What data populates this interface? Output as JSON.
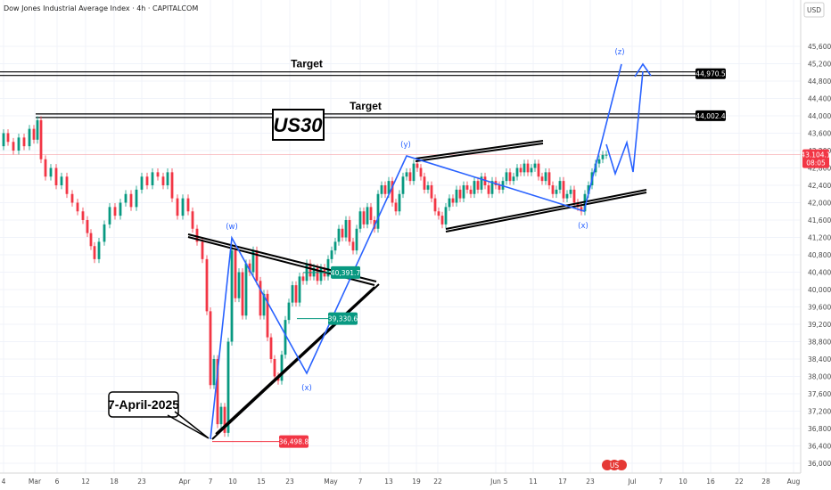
{
  "title": "Dow Jones Industrial Average Index · 4h · CAPITALCOM",
  "currency": "USD",
  "chart_data": {
    "type": "candlestick",
    "y_ticks": [
      36000,
      36400,
      36800,
      37200,
      37600,
      38000,
      38400,
      38800,
      39200,
      39600,
      40000,
      40400,
      40800,
      41200,
      41600,
      42000,
      42400,
      42800,
      43200,
      43600,
      44000,
      44400,
      44800,
      45200,
      45600
    ],
    "y_tick_labels": [
      "36,000.0",
      "36,400.0",
      "36,800.0",
      "37,200.0",
      "37,600.0",
      "38,000.0",
      "38,400.0",
      "38,800.0",
      "39,200.0",
      "39,600.0",
      "40,000.0",
      "40,400.0",
      "40,800.0",
      "41,200.0",
      "41,600.0",
      "42,000.0",
      "42,400.0",
      "42,800.0",
      "43,200.0",
      "43,600.0",
      "44,000.0",
      "44,400.0",
      "44,800.0",
      "45,200.0",
      "45,600.0"
    ],
    "x_ticks": [
      "4",
      "Mar",
      "6",
      "12",
      "18",
      "23",
      "Apr",
      "7",
      "10",
      "15",
      "23",
      "May",
      "7",
      "13",
      "19",
      "22",
      "Jun",
      "5",
      "11",
      "17",
      "23",
      "Jul",
      "7",
      "10",
      "16",
      "22",
      "28",
      "Aug"
    ],
    "price_tags": [
      {
        "label": "44,970.5",
        "value": 44970.5,
        "color": "#000000"
      },
      {
        "label": "44,002.4",
        "value": 44002.4,
        "color": "#000000"
      },
      {
        "label": "43,104.1",
        "value": 43104.1,
        "color": "#f23645"
      },
      {
        "label": "08:05",
        "value": 42960,
        "color": "#f23645"
      }
    ],
    "levels": [
      {
        "label": "40,391.7",
        "value": 40391.7,
        "color": "#089981"
      },
      {
        "label": "39,330.6",
        "value": 39330.6,
        "color": "#089981"
      },
      {
        "label": "36,498.8",
        "value": 36498.8,
        "color": "#f23645"
      }
    ],
    "targets": [
      {
        "label": "Target",
        "value": 44970.5
      },
      {
        "label": "Target",
        "value": 44002.4
      }
    ],
    "waves": [
      {
        "label": "(w)",
        "value": 41200
      },
      {
        "label": "(x)",
        "value": 37900
      },
      {
        "label": "(y)",
        "value": 43000
      },
      {
        "label": "(x)",
        "value": 41300
      },
      {
        "label": "(z)",
        "value": 45300
      }
    ],
    "price_path": [
      [
        2,
        43300
      ],
      [
        6,
        43600
      ],
      [
        12,
        43400
      ],
      [
        18,
        43200
      ],
      [
        24,
        43500
      ],
      [
        30,
        43300
      ],
      [
        36,
        43700
      ],
      [
        40,
        43450
      ],
      [
        44,
        43900
      ],
      [
        48,
        43000
      ],
      [
        54,
        42600
      ],
      [
        60,
        42800
      ],
      [
        66,
        42400
      ],
      [
        72,
        42600
      ],
      [
        78,
        42200
      ],
      [
        84,
        42000
      ],
      [
        90,
        41800
      ],
      [
        96,
        41600
      ],
      [
        100,
        41300
      ],
      [
        104,
        41000
      ],
      [
        108,
        40700
      ],
      [
        114,
        41100
      ],
      [
        120,
        41500
      ],
      [
        126,
        41900
      ],
      [
        132,
        41700
      ],
      [
        138,
        42000
      ],
      [
        144,
        42200
      ],
      [
        150,
        41900
      ],
      [
        156,
        42300
      ],
      [
        162,
        42600
      ],
      [
        168,
        42400
      ],
      [
        174,
        42700
      ],
      [
        180,
        42600
      ],
      [
        186,
        42400
      ],
      [
        190,
        42700
      ],
      [
        196,
        42100
      ],
      [
        202,
        41700
      ],
      [
        208,
        42100
      ],
      [
        214,
        41800
      ],
      [
        218,
        41400
      ],
      [
        224,
        41100
      ],
      [
        230,
        40700
      ],
      [
        234,
        39500
      ],
      [
        238,
        37800
      ],
      [
        242,
        38400
      ],
      [
        246,
        36900
      ],
      [
        250,
        37300
      ],
      [
        254,
        36700
      ],
      [
        258,
        38800
      ],
      [
        262,
        40900
      ],
      [
        266,
        39800
      ],
      [
        270,
        40400
      ],
      [
        274,
        39400
      ],
      [
        278,
        40600
      ],
      [
        282,
        40400
      ],
      [
        286,
        40900
      ],
      [
        290,
        40200
      ],
      [
        294,
        39400
      ],
      [
        298,
        39900
      ],
      [
        302,
        38900
      ],
      [
        306,
        38400
      ],
      [
        310,
        38000
      ],
      [
        314,
        37900
      ],
      [
        318,
        38500
      ],
      [
        322,
        39300
      ],
      [
        326,
        39700
      ],
      [
        330,
        40100
      ],
      [
        334,
        39700
      ],
      [
        338,
        40300
      ],
      [
        342,
        40200
      ],
      [
        346,
        40600
      ],
      [
        350,
        40300
      ],
      [
        354,
        40500
      ],
      [
        358,
        40200
      ],
      [
        362,
        40500
      ],
      [
        366,
        40300
      ],
      [
        370,
        40700
      ],
      [
        374,
        40900
      ],
      [
        378,
        41100
      ],
      [
        382,
        41400
      ],
      [
        386,
        41200
      ],
      [
        390,
        41600
      ],
      [
        394,
        41100
      ],
      [
        398,
        40900
      ],
      [
        402,
        41400
      ],
      [
        406,
        41800
      ],
      [
        410,
        41500
      ],
      [
        414,
        41900
      ],
      [
        418,
        41600
      ],
      [
        422,
        41400
      ],
      [
        426,
        42200
      ],
      [
        430,
        42400
      ],
      [
        434,
        42200
      ],
      [
        438,
        42500
      ],
      [
        442,
        42000
      ],
      [
        446,
        41800
      ],
      [
        450,
        42200
      ],
      [
        454,
        42600
      ],
      [
        458,
        42700
      ],
      [
        462,
        42500
      ],
      [
        466,
        42900
      ],
      [
        470,
        42800
      ],
      [
        474,
        42600
      ],
      [
        478,
        42300
      ],
      [
        482,
        42400
      ],
      [
        486,
        42100
      ],
      [
        490,
        41800
      ],
      [
        494,
        41700
      ],
      [
        498,
        41500
      ],
      [
        502,
        41900
      ],
      [
        506,
        42100
      ],
      [
        510,
        42000
      ],
      [
        514,
        42300
      ],
      [
        518,
        42100
      ],
      [
        522,
        42400
      ],
      [
        526,
        42300
      ],
      [
        530,
        42200
      ],
      [
        534,
        42500
      ],
      [
        538,
        42300
      ],
      [
        542,
        42600
      ],
      [
        546,
        42400
      ],
      [
        550,
        42200
      ],
      [
        554,
        42500
      ],
      [
        558,
        42400
      ],
      [
        562,
        42300
      ],
      [
        566,
        42500
      ],
      [
        570,
        42700
      ],
      [
        574,
        42500
      ],
      [
        578,
        42600
      ],
      [
        582,
        42800
      ],
      [
        586,
        42700
      ],
      [
        590,
        42900
      ],
      [
        594,
        42700
      ],
      [
        598,
        42800
      ],
      [
        602,
        42900
      ],
      [
        606,
        42600
      ],
      [
        610,
        42500
      ],
      [
        614,
        42700
      ],
      [
        618,
        42400
      ],
      [
        622,
        42200
      ],
      [
        626,
        42300
      ],
      [
        630,
        42500
      ],
      [
        634,
        42100
      ],
      [
        638,
        42200
      ],
      [
        642,
        42300
      ],
      [
        646,
        42000
      ],
      [
        650,
        41900
      ],
      [
        654,
        41800
      ],
      [
        658,
        42200
      ],
      [
        662,
        42400
      ],
      [
        666,
        42700
      ],
      [
        670,
        42900
      ],
      [
        674,
        43000
      ],
      [
        678,
        43100
      ],
      [
        682,
        43104
      ]
    ]
  },
  "annotations": {
    "big_label": "US30",
    "date_label": "7-April-2025"
  }
}
